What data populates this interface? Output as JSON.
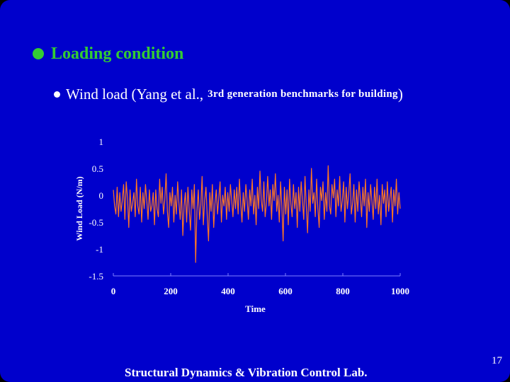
{
  "slide": {
    "heading": "Loading condition",
    "subbullet": {
      "text_main": "Wind load (Yang et al.,",
      "text_small": "3rd generation benchmarks for building",
      "text_close": ")"
    },
    "footer": "Structural Dynamics & Vibration Control Lab.",
    "page_number": "17",
    "colors": {
      "background": "#0000cc",
      "heading": "#33cc33",
      "line": "#ff7722",
      "text": "#ffffff"
    }
  },
  "chart_data": {
    "type": "line",
    "xlabel": "Time",
    "ylabel": "Wind Load (N/m)",
    "xlim": [
      0,
      1000
    ],
    "ylim": [
      -1.5,
      1
    ],
    "xticks": [
      "0",
      "200",
      "400",
      "600",
      "800",
      "1000"
    ],
    "yticks": [
      "1",
      "0.5",
      "0",
      "-0.5",
      "-1",
      "-1.5"
    ],
    "grid": false,
    "legend": "none",
    "series": [
      {
        "x_start": 0,
        "x_end": 1000,
        "values": [
          0.1,
          -0.2,
          -0.35,
          0.15,
          -0.4,
          0.05,
          -0.3,
          -0.1,
          0.2,
          -0.45,
          0.25,
          -0.05,
          -0.6,
          0.1,
          -0.3,
          -0.15,
          0.05,
          -0.4,
          0.3,
          -0.2,
          -0.35,
          0.15,
          -0.5,
          0.05,
          -0.25,
          0.2,
          -0.1,
          -0.45,
          0.1,
          -0.3,
          -0.2,
          0.05,
          -0.55,
          0.1,
          -0.25,
          -0.4,
          0.3,
          -0.15,
          0.15,
          -0.35,
          -0.1,
          0.4,
          -0.3,
          -0.6,
          0.05,
          -0.2,
          0.15,
          -0.5,
          0.0,
          -0.35,
          0.25,
          -0.15,
          -0.45,
          0.1,
          -0.75,
          -0.2,
          0.05,
          -0.5,
          0.15,
          -0.3,
          -0.65,
          0.1,
          -0.25,
          0.2,
          -1.25,
          -0.3,
          0.1,
          -0.45,
          -0.2,
          0.35,
          -0.55,
          -0.1,
          0.15,
          -0.4,
          -0.85,
          0.05,
          -0.3,
          0.2,
          -0.6,
          -0.15,
          0.1,
          -0.35,
          -0.05,
          0.25,
          -0.5,
          0.0,
          -0.2,
          0.15,
          -0.45,
          0.05,
          -0.3,
          0.2,
          -0.1,
          -0.4,
          0.1,
          -0.25,
          0.15,
          -0.35,
          0.3,
          -0.15,
          -0.5,
          0.05,
          -0.3,
          0.2,
          -0.1,
          -0.45,
          0.1,
          -0.2,
          0.3,
          -0.35,
          0.0,
          -0.55,
          0.15,
          -0.25,
          0.45,
          -0.1,
          -0.3,
          0.25,
          -0.4,
          -0.15,
          0.35,
          -0.2,
          0.1,
          -0.45,
          0.2,
          -0.1,
          0.4,
          -0.3,
          0.0,
          -0.5,
          0.25,
          -0.2,
          -0.85,
          0.15,
          -0.35,
          0.1,
          -0.55,
          0.3,
          -0.15,
          -0.4,
          0.2,
          -0.25,
          0.05,
          -0.6,
          0.15,
          -0.3,
          0.25,
          -0.1,
          -0.45,
          0.35,
          -0.2,
          -0.7,
          0.1,
          -0.3,
          0.5,
          -0.15,
          0.05,
          -0.4,
          0.3,
          -0.25,
          -0.6,
          0.15,
          -0.1,
          0.25,
          -0.45,
          0.05,
          -0.3,
          0.55,
          -0.2,
          -0.35,
          0.2,
          -0.05,
          0.3,
          -0.4,
          0.1,
          -0.2,
          0.35,
          -0.3,
          -0.1,
          0.25,
          -0.5,
          0.15,
          -0.25,
          0.05,
          0.4,
          -0.35,
          -0.15,
          0.2,
          -0.5,
          0.1,
          -0.3,
          0.25,
          -0.05,
          -0.4,
          0.15,
          -0.2,
          0.3,
          -0.6,
          0.05,
          -0.3,
          0.2,
          -0.1,
          -0.45,
          0.15,
          -0.25,
          0.3,
          -0.35,
          0.0,
          -0.55,
          0.2,
          -0.15,
          0.1,
          -0.4,
          0.25,
          -0.3,
          -0.05,
          0.15,
          -0.5,
          0.1,
          -0.2,
          0.3,
          -0.35,
          0.05,
          -0.25
        ]
      }
    ]
  }
}
